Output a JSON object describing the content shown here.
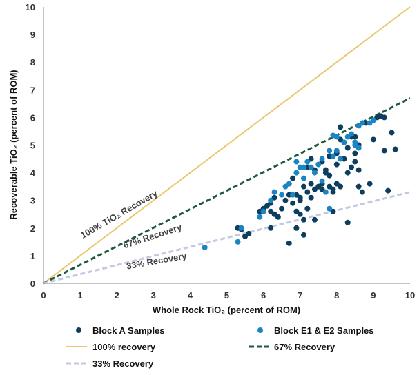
{
  "chart_data": {
    "type": "scatter",
    "xlabel": "Whole Rock TiO₂ (percent of ROM)",
    "ylabel": "Recoverable TiO₂ (percent of ROM)",
    "xlim": [
      0,
      10
    ],
    "ylim": [
      0,
      10
    ],
    "x_ticks": [
      "0",
      "1",
      "2",
      "3",
      "4",
      "5",
      "6",
      "7",
      "8",
      "9",
      "10"
    ],
    "y_ticks": [
      "0",
      "1",
      "2",
      "3",
      "4",
      "5",
      "6",
      "7",
      "8",
      "9",
      "10"
    ],
    "grid": false,
    "legend_position": "bottom",
    "series": [
      {
        "name": "Block A Samples",
        "kind": "scatter",
        "color": "#0d3e5f",
        "points": [
          [
            5.3,
            2.0
          ],
          [
            5.5,
            1.7
          ],
          [
            5.6,
            1.8
          ],
          [
            5.9,
            2.6
          ],
          [
            6.0,
            2.7
          ],
          [
            6.1,
            2.8
          ],
          [
            6.2,
            2.9
          ],
          [
            6.2,
            2.6
          ],
          [
            6.2,
            2.0
          ],
          [
            6.3,
            2.5
          ],
          [
            6.4,
            2.4
          ],
          [
            6.5,
            2.7
          ],
          [
            6.6,
            3.0
          ],
          [
            6.7,
            1.45
          ],
          [
            6.7,
            3.2
          ],
          [
            6.8,
            2.9
          ],
          [
            6.8,
            3.8
          ],
          [
            6.9,
            2.6
          ],
          [
            6.9,
            3.2
          ],
          [
            7.0,
            3.0
          ],
          [
            7.0,
            3.1
          ],
          [
            7.1,
            2.3
          ],
          [
            7.1,
            1.75
          ],
          [
            7.1,
            3.5
          ],
          [
            7.2,
            2.7
          ],
          [
            7.2,
            3.3
          ],
          [
            7.2,
            4.2
          ],
          [
            7.3,
            3.1
          ],
          [
            7.3,
            3.6
          ],
          [
            7.3,
            4.5
          ],
          [
            7.4,
            2.3
          ],
          [
            7.4,
            3.4
          ],
          [
            7.5,
            3.5
          ],
          [
            7.6,
            3.4
          ],
          [
            7.6,
            3.6
          ],
          [
            7.7,
            4.0
          ],
          [
            7.7,
            4.1
          ],
          [
            7.8,
            3.5
          ],
          [
            7.8,
            4.6
          ],
          [
            7.9,
            2.6
          ],
          [
            7.9,
            3.3
          ],
          [
            7.9,
            3.4
          ],
          [
            8.0,
            3.6
          ],
          [
            8.0,
            4.3
          ],
          [
            8.1,
            3.5
          ],
          [
            8.1,
            5.2
          ],
          [
            8.1,
            5.65
          ],
          [
            8.2,
            4.5
          ],
          [
            8.2,
            5.1
          ],
          [
            8.3,
            2.2
          ],
          [
            8.3,
            4.0
          ],
          [
            8.3,
            4.9
          ],
          [
            8.4,
            4.2
          ],
          [
            8.4,
            5.3
          ],
          [
            8.5,
            4.4
          ],
          [
            8.5,
            4.7
          ],
          [
            8.5,
            5.3
          ],
          [
            8.6,
            3.5
          ],
          [
            8.6,
            4.1
          ],
          [
            8.7,
            3.3
          ],
          [
            8.8,
            5.8
          ],
          [
            8.9,
            3.6
          ],
          [
            9.0,
            5.2
          ],
          [
            9.0,
            5.9
          ],
          [
            9.1,
            6.0
          ],
          [
            9.2,
            6.05
          ],
          [
            9.3,
            4.8
          ],
          [
            9.3,
            6.0
          ],
          [
            9.4,
            3.35
          ],
          [
            9.5,
            5.45
          ],
          [
            9.6,
            4.85
          ],
          [
            7.4,
            4.1
          ],
          [
            7.6,
            4.4
          ],
          [
            7.0,
            2.5
          ],
          [
            8.0,
            4.7
          ],
          [
            6.9,
            2.0
          ],
          [
            5.4,
            1.95
          ],
          [
            6.3,
            3.1
          ],
          [
            7.8,
            3.9
          ],
          [
            8.6,
            5.0
          ]
        ]
      },
      {
        "name": "Block E1 & E2 Samples",
        "kind": "scatter",
        "color": "#1a85c2",
        "points": [
          [
            4.4,
            1.3
          ],
          [
            5.3,
            1.5
          ],
          [
            5.4,
            2.0
          ],
          [
            5.9,
            2.4
          ],
          [
            6.0,
            2.6
          ],
          [
            6.2,
            3.0
          ],
          [
            6.3,
            3.3
          ],
          [
            6.5,
            3.2
          ],
          [
            6.6,
            3.5
          ],
          [
            6.7,
            3.6
          ],
          [
            6.8,
            3.2
          ],
          [
            6.9,
            4.0
          ],
          [
            6.9,
            4.4
          ],
          [
            7.0,
            4.2
          ],
          [
            7.1,
            3.8
          ],
          [
            7.1,
            4.2
          ],
          [
            7.2,
            4.4
          ],
          [
            7.3,
            4.2
          ],
          [
            7.4,
            4.0
          ],
          [
            7.5,
            4.3
          ],
          [
            7.6,
            3.7
          ],
          [
            7.6,
            4.5
          ],
          [
            7.8,
            4.8
          ],
          [
            7.8,
            2.7
          ],
          [
            7.9,
            4.6
          ],
          [
            7.9,
            5.35
          ],
          [
            8.0,
            5.3
          ],
          [
            8.0,
            4.8
          ],
          [
            8.1,
            4.5
          ],
          [
            8.2,
            5.1
          ],
          [
            8.3,
            5.3
          ],
          [
            8.4,
            5.4
          ],
          [
            8.5,
            5.0
          ],
          [
            8.5,
            5.1
          ],
          [
            8.6,
            4.9
          ],
          [
            8.6,
            5.7
          ],
          [
            8.7,
            5.8
          ],
          [
            8.9,
            5.8
          ],
          [
            9.0,
            5.9
          ],
          [
            7.7,
            3.3
          ]
        ]
      },
      {
        "name": "100% recovery",
        "kind": "line",
        "color": "#ecc66e",
        "style": "solid",
        "slope": 1.0
      },
      {
        "name": "67% Recovery",
        "kind": "line",
        "color": "#1d5b3c",
        "style": "dashed",
        "slope": 0.67
      },
      {
        "name": "33% Recovery",
        "kind": "line",
        "color": "#c3c9e1",
        "style": "dashed",
        "slope": 0.33
      }
    ],
    "annotations": [
      {
        "text": "100% TiO₂ Recovery",
        "at": [
          2.1,
          2.4
        ],
        "angle_deg": -30
      },
      {
        "text": "67% Recovery",
        "at": [
          3.0,
          1.6
        ],
        "angle_deg": -18
      },
      {
        "text": "33% Recovery",
        "at": [
          3.1,
          0.7
        ],
        "angle_deg": -10
      }
    ]
  }
}
